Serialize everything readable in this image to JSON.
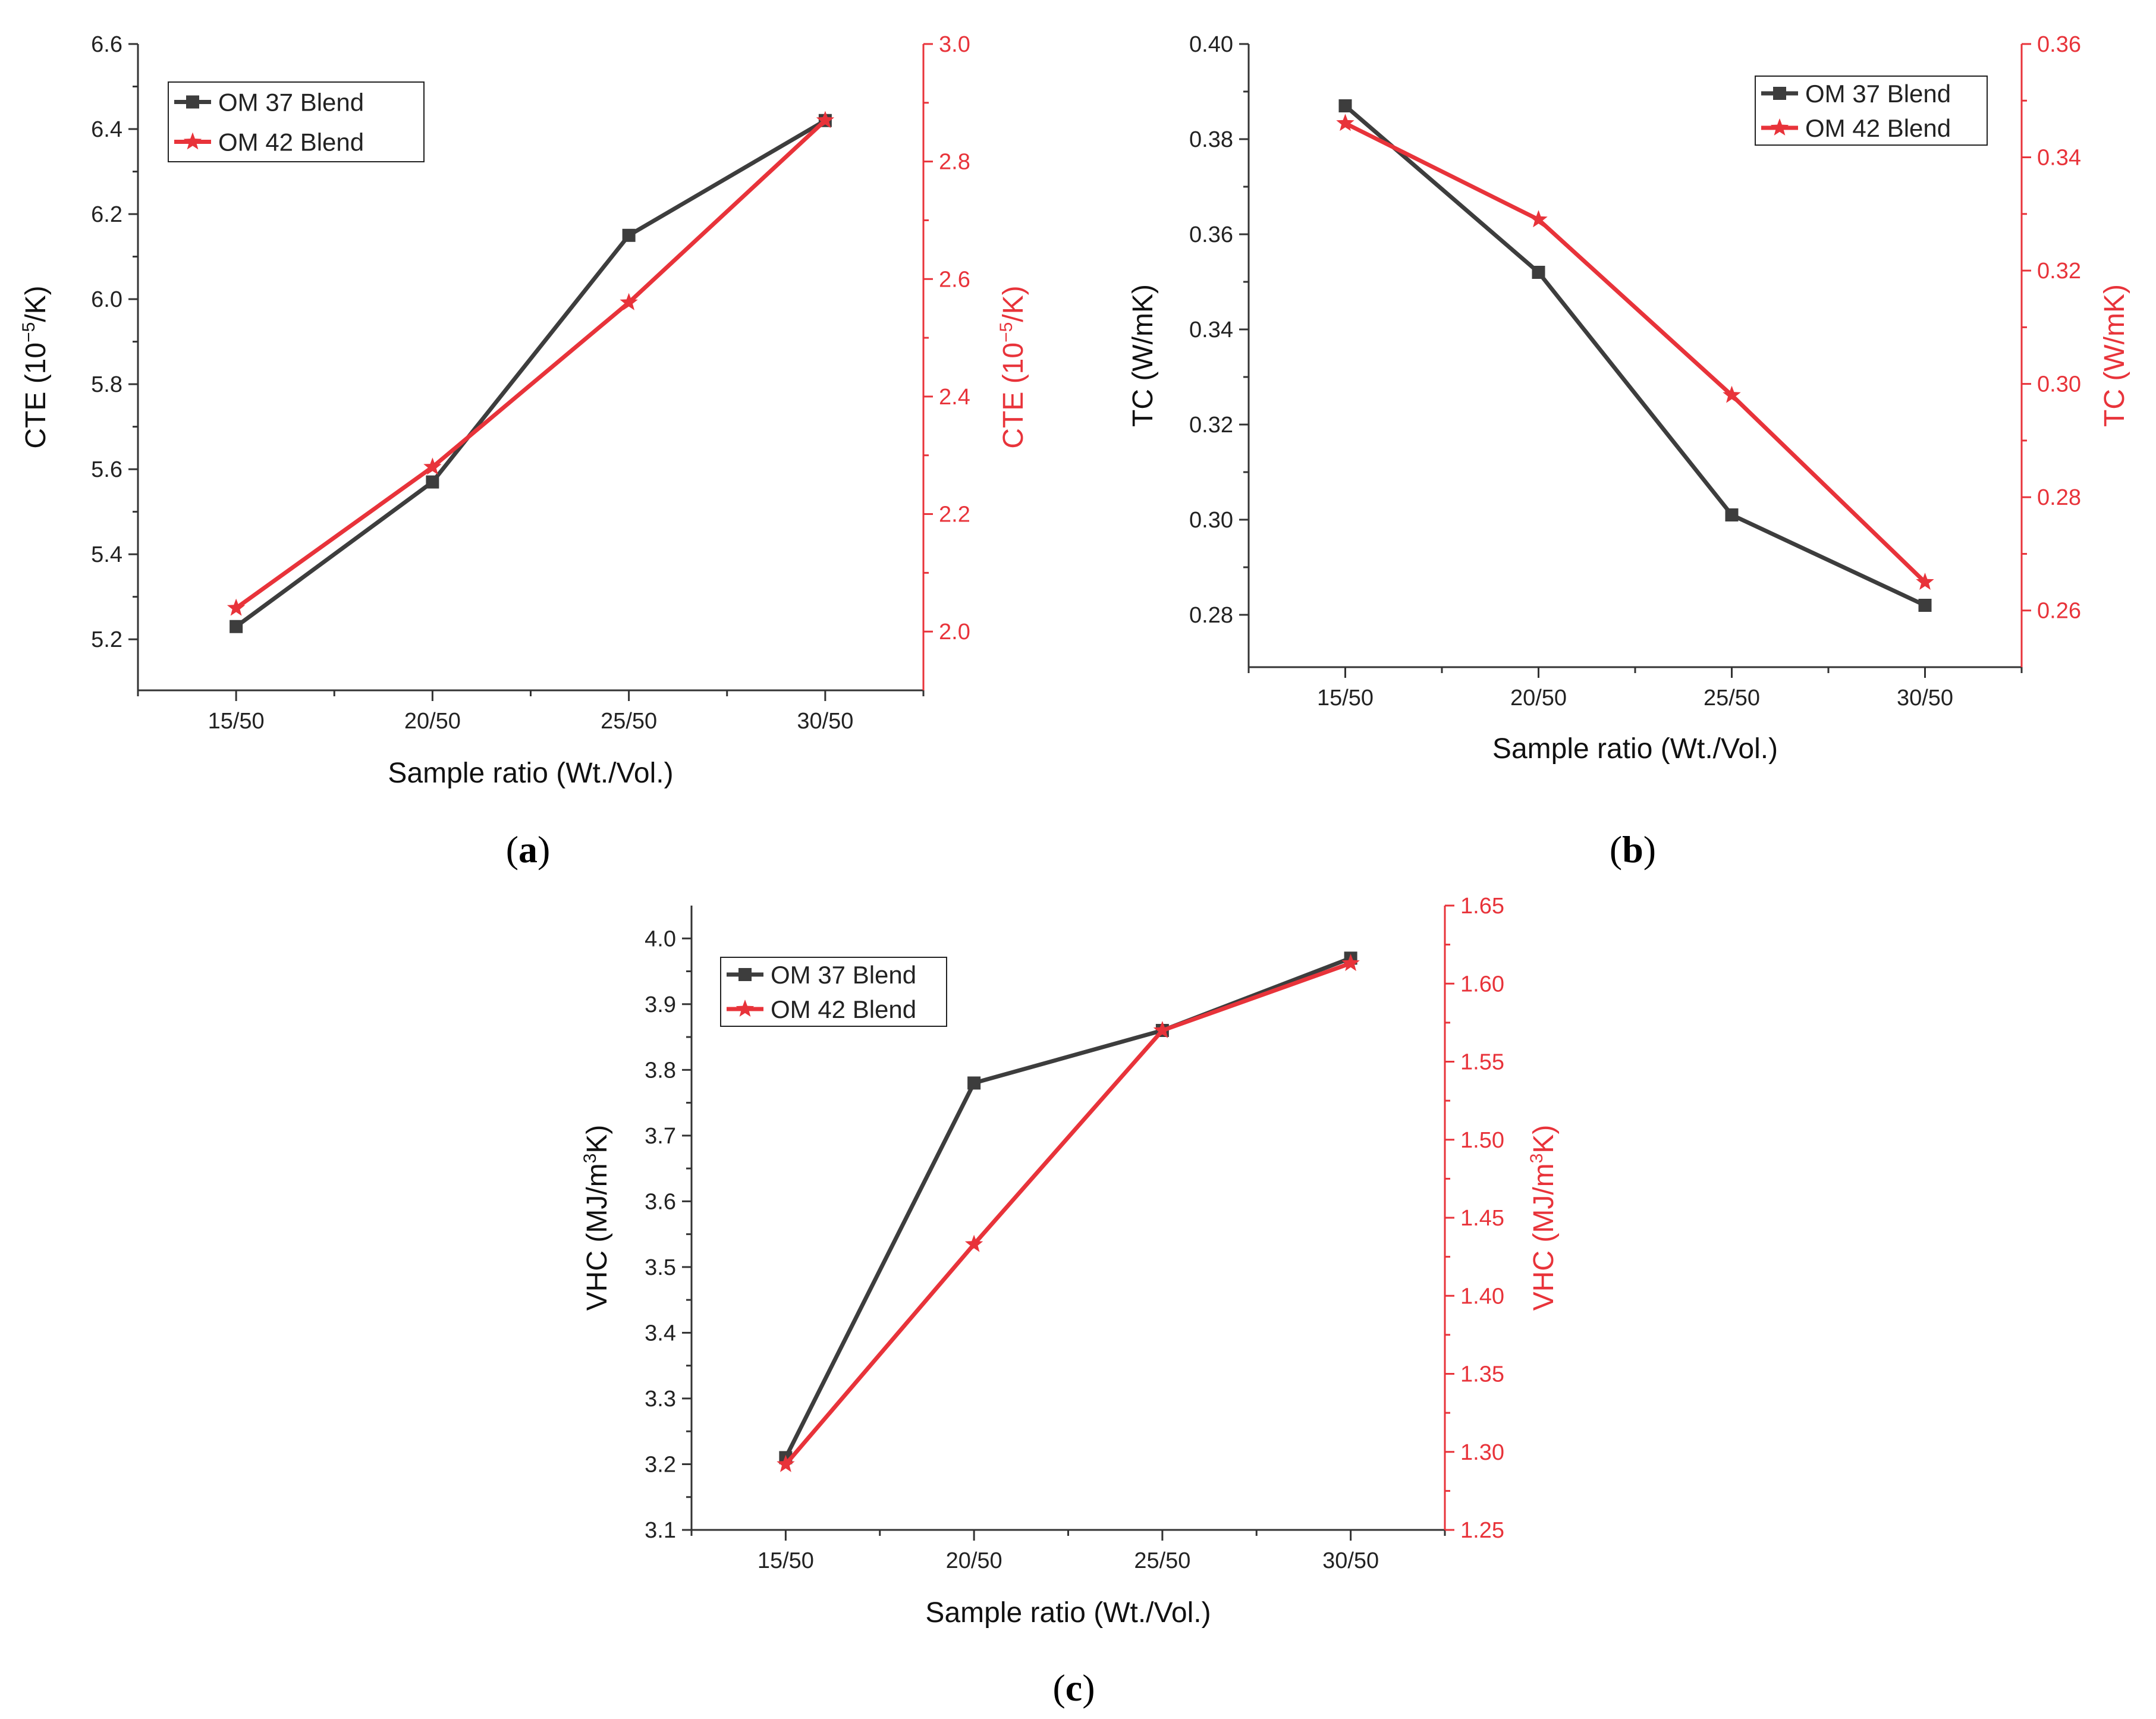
{
  "colors": {
    "series1": "#3d3d3d",
    "series2": "#e8333a",
    "axis": "#333333",
    "right_axis": "#e8333a"
  },
  "chart_data": [
    {
      "type": "line",
      "panel_label": "a",
      "categories": [
        "15/50",
        "20/50",
        "25/50",
        "30/50"
      ],
      "xlabel": "Sample ratio (Wt./Vol.)",
      "ylabel": {
        "base": "CTE (10",
        "sup": "−5",
        "tail": "/K)"
      },
      "y2label": {
        "base": "CTE (10",
        "sup": "−5",
        "tail": "/K)"
      },
      "ylim": [
        5.08,
        6.6
      ],
      "y2lim": [
        1.9,
        3.0
      ],
      "yticks": [
        5.2,
        5.4,
        5.6,
        5.8,
        6.0,
        6.2,
        6.4,
        6.6
      ],
      "ytick_labels": [
        "5.2",
        "5.4",
        "5.6",
        "5.8",
        "6.0",
        "6.2",
        "6.4",
        "6.6"
      ],
      "y2ticks": [
        2.0,
        2.2,
        2.4,
        2.6,
        2.8,
        3.0
      ],
      "y2tick_labels": [
        "2.0",
        "2.2",
        "2.4",
        "2.6",
        "2.8",
        "3.0"
      ],
      "legend_position": "top-left",
      "series": [
        {
          "name": "OM 37 Blend",
          "axis": "left",
          "marker": "square",
          "values": [
            5.23,
            5.57,
            6.15,
            6.42
          ]
        },
        {
          "name": "OM 42 Blend",
          "axis": "right",
          "marker": "star",
          "values": [
            2.04,
            2.28,
            2.56,
            2.87
          ]
        }
      ]
    },
    {
      "type": "line",
      "panel_label": "b",
      "categories": [
        "15/50",
        "20/50",
        "25/50",
        "30/50"
      ],
      "xlabel": "Sample ratio (Wt./Vol.)",
      "ylabel": {
        "base": "TC (W/mK)",
        "sup": "",
        "tail": ""
      },
      "y2label": {
        "base": "TC (W/mK)",
        "sup": "",
        "tail": ""
      },
      "ylim": [
        0.269,
        0.4
      ],
      "y2lim": [
        0.25,
        0.36
      ],
      "yticks": [
        0.28,
        0.3,
        0.32,
        0.34,
        0.36,
        0.38,
        0.4
      ],
      "ytick_labels": [
        "0.28",
        "0.30",
        "0.32",
        "0.34",
        "0.36",
        "0.38",
        "0.40"
      ],
      "y2ticks": [
        0.26,
        0.28,
        0.3,
        0.32,
        0.34,
        0.36
      ],
      "y2tick_labels": [
        "0.26",
        "0.28",
        "0.30",
        "0.32",
        "0.34",
        "0.36"
      ],
      "legend_position": "top-right",
      "series": [
        {
          "name": "OM 37 Blend",
          "axis": "left",
          "marker": "square",
          "values": [
            0.387,
            0.352,
            0.301,
            0.282
          ]
        },
        {
          "name": "OM 42 Blend",
          "axis": "right",
          "marker": "star",
          "values": [
            0.346,
            0.329,
            0.298,
            0.265
          ]
        }
      ]
    },
    {
      "type": "line",
      "panel_label": "c",
      "categories": [
        "15/50",
        "20/50",
        "25/50",
        "30/50"
      ],
      "xlabel": "Sample ratio (Wt./Vol.)",
      "ylabel": {
        "base": "VHC (MJ/m",
        "sup": "3",
        "tail": "K)"
      },
      "y2label": {
        "base": "VHC (MJ/m",
        "sup": "3",
        "tail": "K)"
      },
      "ylim": [
        3.1,
        4.05
      ],
      "y2lim": [
        1.25,
        1.65
      ],
      "yticks": [
        3.1,
        3.2,
        3.3,
        3.4,
        3.5,
        3.6,
        3.7,
        3.8,
        3.9,
        4.0
      ],
      "ytick_labels": [
        "3.1",
        "3.2",
        "3.3",
        "3.4",
        "3.5",
        "3.6",
        "3.7",
        "3.8",
        "3.9",
        "4.0"
      ],
      "y2ticks": [
        1.25,
        1.3,
        1.35,
        1.4,
        1.45,
        1.5,
        1.55,
        1.6,
        1.65
      ],
      "y2tick_labels": [
        "1.25",
        "1.30",
        "1.35",
        "1.40",
        "1.45",
        "1.50",
        "1.55",
        "1.60",
        "1.65"
      ],
      "legend_position": "top-left",
      "series": [
        {
          "name": "OM 37 Blend",
          "axis": "left",
          "marker": "square",
          "values": [
            3.21,
            3.78,
            3.86,
            3.97
          ]
        },
        {
          "name": "OM 42 Blend",
          "axis": "right",
          "marker": "star",
          "values": [
            1.292,
            1.433,
            1.57,
            1.613
          ]
        }
      ]
    }
  ]
}
